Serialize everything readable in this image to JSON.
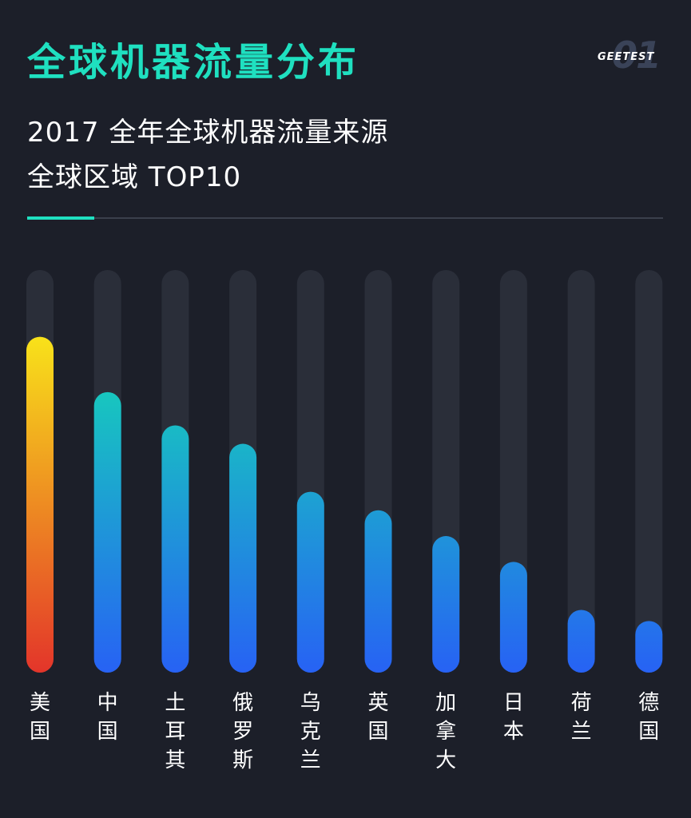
{
  "header": {
    "title": "全球机器流量分布",
    "brand_name": "GEETEST",
    "brand_number": "01",
    "subtitle_line1": "2017 全年全球机器流量来源",
    "subtitle_line2": "全球区域 TOP10"
  },
  "colors": {
    "background": "#1c1f29",
    "accent": "#1fe0c0",
    "track": "#2a2e39",
    "top_bar_gradient": [
      "#f8e21a",
      "#e3352a"
    ],
    "bar_gradient": [
      "#12e6ae",
      "#2762f4"
    ]
  },
  "chart_data": {
    "type": "bar",
    "orientation": "vertical",
    "categories": [
      "美国",
      "中国",
      "土耳其",
      "俄罗斯",
      "乌克兰",
      "英国",
      "加拿大",
      "日本",
      "荷兰",
      "德国"
    ],
    "values": [
      91,
      76,
      67,
      62,
      49,
      44,
      37,
      30,
      17,
      14
    ],
    "ylim": [
      0,
      100
    ],
    "grid": false,
    "legend": "none"
  }
}
